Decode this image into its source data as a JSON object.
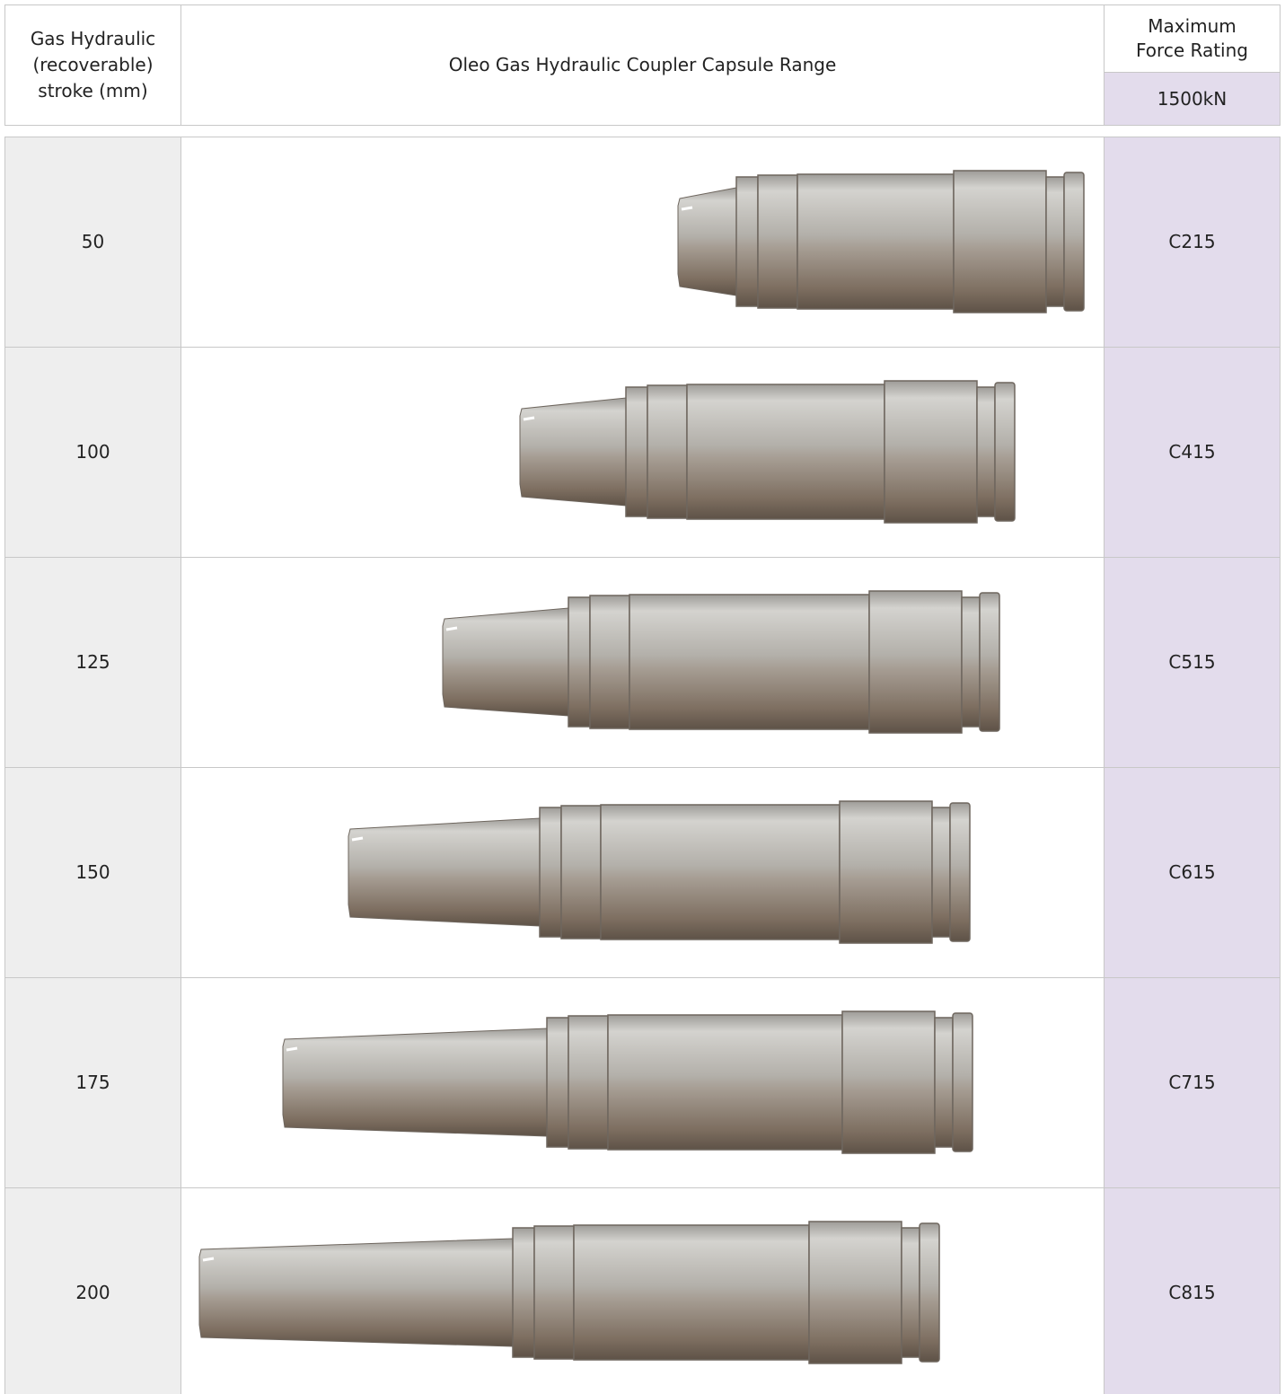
{
  "header": {
    "stroke": "Gas Hydraulic (recoverable) stroke (mm)",
    "range": "Oleo Gas Hydraulic Coupler Capsule Range",
    "force": "Maximum Force Rating",
    "force_value": "1500kN"
  },
  "table": {
    "rows": [
      [
        "50",
        "C215"
      ],
      [
        "100",
        "C415"
      ],
      [
        "125",
        "C515"
      ],
      [
        "150",
        "C615"
      ],
      [
        "175",
        "C715"
      ],
      [
        "200",
        "C815"
      ]
    ]
  }
}
